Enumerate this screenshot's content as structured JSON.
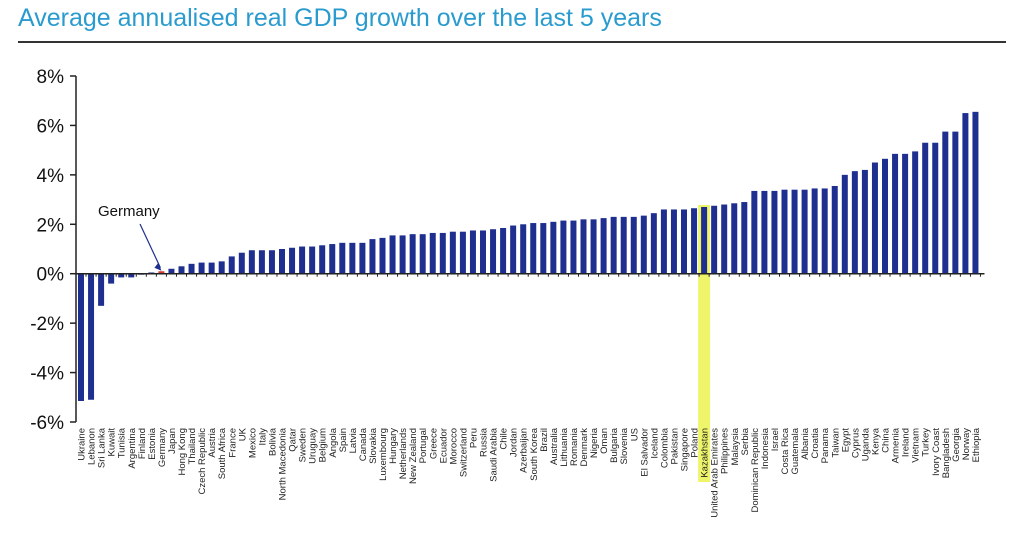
{
  "chart_data": {
    "type": "bar",
    "title": "Average annualised real GDP growth over the last 5 years",
    "xlabel": "",
    "ylabel": "",
    "ylim": [
      -6,
      8
    ],
    "yticks": [
      -6,
      -4,
      -2,
      0,
      2,
      4,
      6,
      8
    ],
    "ytick_labels": [
      "-6%",
      "-4%",
      "-2%",
      "0%",
      "2%",
      "4%",
      "6%",
      "8%"
    ],
    "grid": false,
    "bar_color": "#1f2f8f",
    "highlight_color": "#d9342b",
    "highlight_band_color": "#eef56a",
    "annotations": [
      {
        "text": "Germany",
        "target": "Germany"
      }
    ],
    "highlighted_label": "Kazakhstan",
    "categories": [
      "Ukraine",
      "Lebanon",
      "Sri Lanka",
      "Kuwait",
      "Tunisia",
      "Argentina",
      "Finland",
      "Estonia",
      "Germany",
      "Japan",
      "Hong Kong",
      "Thailand",
      "Czech Republic",
      "Austria",
      "South Africa",
      "France",
      "UK",
      "Mexico",
      "Italy",
      "Bolivia",
      "North Macedonia",
      "Qatar",
      "Sweden",
      "Uruguay",
      "Belgium",
      "Angola",
      "Spain",
      "Latvia",
      "Canada",
      "Slovakia",
      "Luxembourg",
      "Hungary",
      "Netherlands",
      "New Zealand",
      "Portugal",
      "Greece",
      "Ecuador",
      "Morocco",
      "Switzerland",
      "Peru",
      "Russia",
      "Saudi Arabia",
      "Chile",
      "Jordan",
      "Azerbaijan",
      "South Korea",
      "Brazil",
      "Australia",
      "Lithuania",
      "Romania",
      "Denmark",
      "Nigeria",
      "Oman",
      "Bulgaria",
      "Slovenia",
      "US",
      "El Salvador",
      "Iceland",
      "Colombia",
      "Pakistan",
      "Singapore",
      "Poland",
      "Kazakhstan",
      "United Arab Emirates",
      "Philippines",
      "Malaysia",
      "Serbia",
      "Dominican Republic",
      "Indonesia",
      "Israel",
      "Costa Rica",
      "Guatemala",
      "Albania",
      "Croatia",
      "Panama",
      "Taiwan",
      "Egypt",
      "Cyprus",
      "Uganda",
      "Kenya",
      "China",
      "Armenia",
      "Ireland",
      "Vietnam",
      "Turkey",
      "Ivory Coast",
      "Bangladesh",
      "Georgia",
      "Norway",
      "Ethiopia"
    ],
    "values": [
      -5.15,
      -5.1,
      -1.3,
      -0.4,
      -0.15,
      -0.15,
      0.02,
      0.05,
      0.1,
      0.2,
      0.3,
      0.4,
      0.45,
      0.45,
      0.5,
      0.7,
      0.85,
      0.95,
      0.95,
      0.95,
      1.0,
      1.05,
      1.1,
      1.1,
      1.15,
      1.2,
      1.25,
      1.25,
      1.25,
      1.4,
      1.45,
      1.55,
      1.55,
      1.6,
      1.6,
      1.65,
      1.65,
      1.7,
      1.7,
      1.75,
      1.75,
      1.8,
      1.85,
      1.95,
      2.0,
      2.05,
      2.05,
      2.1,
      2.15,
      2.15,
      2.2,
      2.2,
      2.25,
      2.3,
      2.3,
      2.3,
      2.35,
      2.45,
      2.6,
      2.6,
      2.6,
      2.65,
      2.7,
      2.75,
      2.8,
      2.85,
      2.9,
      3.35,
      3.35,
      3.35,
      3.4,
      3.4,
      3.4,
      3.45,
      3.45,
      3.55,
      4.0,
      4.15,
      4.2,
      4.5,
      4.65,
      4.85,
      4.85,
      4.95,
      5.3,
      5.3,
      5.75,
      5.75,
      6.5,
      6.55
    ]
  }
}
